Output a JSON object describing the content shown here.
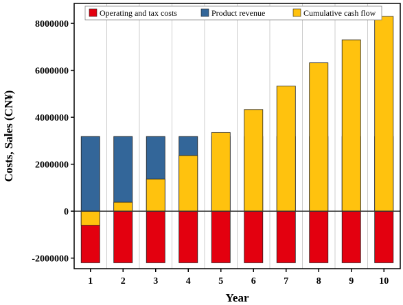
{
  "chart_data": {
    "type": "bar",
    "title": "",
    "xlabel": "Year",
    "ylabel": "Costs, Sales (CN¥)",
    "categories": [
      "1",
      "2",
      "3",
      "4",
      "5",
      "6",
      "7",
      "8",
      "9",
      "10"
    ],
    "yticks": [
      "-2000000",
      "0",
      "2000000",
      "4000000",
      "6000000",
      "8000000"
    ],
    "ytick_values": [
      -2000000,
      0,
      2000000,
      4000000,
      6000000,
      8000000
    ],
    "ylim": [
      -2450000,
      8850000
    ],
    "grid": "vertical",
    "legend_position": "top",
    "series": [
      {
        "name": "Operating and tax costs",
        "color": "#e3000f",
        "values": [
          -2200000,
          -2200000,
          -2200000,
          -2200000,
          -2200000,
          -2200000,
          -2200000,
          -2200000,
          -2200000,
          -2200000
        ]
      },
      {
        "name": "Product revenue",
        "color": "#336699",
        "values": [
          3180000,
          3180000,
          3180000,
          3180000,
          3180000,
          3180000,
          3180000,
          3180000,
          3180000,
          3180000
        ]
      },
      {
        "name": "Cumulative cash flow",
        "color": "#ffc20e",
        "values": [
          -600000,
          380000,
          1370000,
          2370000,
          3350000,
          4330000,
          5330000,
          6320000,
          7300000,
          8300000
        ]
      }
    ]
  }
}
